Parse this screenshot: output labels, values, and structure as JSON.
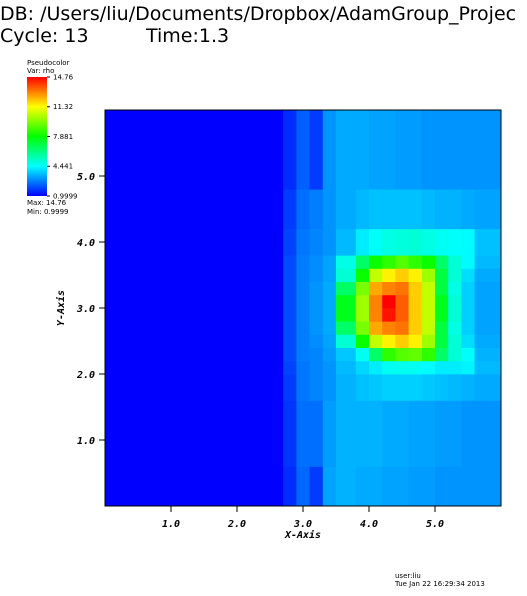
{
  "chart_data": {
    "type": "heatmap",
    "title": "DB: /Users/liu/Documents/Dropbox/AdamGroup_Projec",
    "cycle": "Cycle: 13",
    "time": "Time:1.3",
    "legend_title": "Pseudocolor",
    "legend_var": "Var: rho",
    "legend_max": "Max: 14.76",
    "legend_min": "Min: 0.9999",
    "clim": [
      0.9999,
      14.76
    ],
    "cticks": [
      14.76,
      11.32,
      7.881,
      4.441,
      0.9999
    ],
    "colormap": [
      "#0000ff",
      "#00ffff",
      "#00ff00",
      "#ffff00",
      "#ff0000"
    ],
    "xlabel": "X-Axis",
    "ylabel": "Y-Axis",
    "xlim": [
      0,
      6
    ],
    "ylim": [
      0,
      6
    ],
    "xticks": [
      {
        "value": 1,
        "label": "1.0"
      },
      {
        "value": 2,
        "label": "2.0"
      },
      {
        "value": 3,
        "label": "3.0"
      },
      {
        "value": 4,
        "label": "4.0"
      },
      {
        "value": 5,
        "label": "5.0"
      }
    ],
    "yticks": [
      {
        "value": 1,
        "label": "1.0"
      },
      {
        "value": 2,
        "label": "2.0"
      },
      {
        "value": 3,
        "label": "3.0"
      },
      {
        "value": 4,
        "label": "4.0"
      },
      {
        "value": 5,
        "label": "5.0"
      }
    ],
    "x_edges": [
      0,
      2.7,
      2.9,
      3.1,
      3.3,
      3.5,
      3.8,
      4.0,
      4.2,
      4.4,
      4.6,
      4.8,
      5.0,
      5.2,
      5.4,
      5.6,
      6.0
    ],
    "y_edges": [
      0,
      0.6,
      1.2,
      1.6,
      2.0,
      2.2,
      2.4,
      2.6,
      2.8,
      3.0,
      3.2,
      3.4,
      3.6,
      3.8,
      4.2,
      4.8,
      5.4,
      6.0
    ],
    "values": [
      [
        1,
        1.6,
        2.4,
        1.8,
        3.2,
        3.4,
        3.3,
        3.3,
        3.2,
        3.2,
        3.1,
        3.1,
        3.0,
        3.0,
        3.0,
        3.0
      ],
      [
        1,
        1.7,
        2.5,
        2.5,
        3.1,
        3.4,
        3.4,
        3.4,
        3.3,
        3.3,
        3.2,
        3.2,
        3.1,
        3.1,
        3.0,
        3.0
      ],
      [
        1,
        1.7,
        2.5,
        2.5,
        3.1,
        3.4,
        3.4,
        3.4,
        3.3,
        3.3,
        3.2,
        3.2,
        3.1,
        3.1,
        3.0,
        3.0
      ],
      [
        1,
        1.8,
        2.6,
        2.8,
        3.0,
        3.4,
        3.6,
        3.7,
        3.8,
        3.8,
        3.8,
        3.7,
        3.6,
        3.5,
        3.4,
        3.3
      ],
      [
        1,
        1.9,
        2.6,
        2.8,
        3.0,
        3.5,
        3.9,
        4.2,
        4.6,
        4.7,
        4.6,
        4.4,
        4.2,
        4.2,
        4.3,
        3.5
      ],
      [
        1,
        2.0,
        2.7,
        2.8,
        3.1,
        3.7,
        4.6,
        6.5,
        8.5,
        9.0,
        9.2,
        8.5,
        6.5,
        5.0,
        4.5,
        3.4
      ],
      [
        1,
        2.0,
        2.7,
        2.9,
        3.2,
        5.0,
        8.0,
        10.5,
        11.5,
        12.0,
        11.5,
        10.0,
        7.0,
        5.0,
        4.0,
        3.3
      ],
      [
        1,
        2.0,
        2.7,
        3.0,
        3.3,
        6.5,
        9.5,
        12.5,
        13.0,
        13.2,
        12.0,
        10.5,
        7.0,
        4.8,
        3.8,
        3.2
      ],
      [
        1,
        2.0,
        2.7,
        3.0,
        3.3,
        7.5,
        10.0,
        13.0,
        14.5,
        13.5,
        12.0,
        10.5,
        7.5,
        5.0,
        3.8,
        3.2
      ],
      [
        1,
        2.0,
        2.7,
        3.0,
        3.3,
        7.5,
        10.0,
        13.0,
        14.76,
        13.5,
        12.0,
        10.5,
        7.5,
        5.0,
        3.8,
        3.2
      ],
      [
        1,
        2.0,
        2.7,
        3.0,
        3.3,
        6.5,
        9.5,
        12.5,
        13.0,
        13.2,
        12.0,
        10.5,
        7.0,
        4.8,
        3.8,
        3.2
      ],
      [
        1,
        2.0,
        2.7,
        2.9,
        3.2,
        5.0,
        8.0,
        10.5,
        11.5,
        12.0,
        11.5,
        10.0,
        7.0,
        5.0,
        4.0,
        3.3
      ],
      [
        1,
        2.0,
        2.7,
        2.9,
        3.2,
        4.8,
        6.5,
        8.0,
        8.5,
        9.0,
        8.5,
        8.0,
        6.5,
        5.0,
        4.4,
        3.5
      ],
      [
        1,
        1.9,
        2.6,
        2.8,
        3.0,
        3.5,
        4.2,
        4.5,
        4.8,
        4.9,
        5.0,
        4.8,
        4.6,
        4.5,
        4.4,
        3.6
      ],
      [
        1,
        1.8,
        2.5,
        2.7,
        3.0,
        3.3,
        3.5,
        3.6,
        3.6,
        3.6,
        3.6,
        3.5,
        3.4,
        3.4,
        3.3,
        3.2
      ],
      [
        1,
        1.6,
        2.3,
        1.8,
        3.0,
        3.3,
        3.3,
        3.2,
        3.2,
        3.1,
        3.1,
        3.0,
        3.0,
        3.0,
        3.0,
        3.0
      ],
      [
        1,
        1.6,
        2.3,
        1.8,
        3.0,
        3.3,
        3.3,
        3.2,
        3.2,
        3.1,
        3.1,
        3.0,
        3.0,
        3.0,
        3.0,
        3.0
      ]
    ],
    "user": "user:liu",
    "date": "Tue Jan 22 16:29:34 2013"
  }
}
